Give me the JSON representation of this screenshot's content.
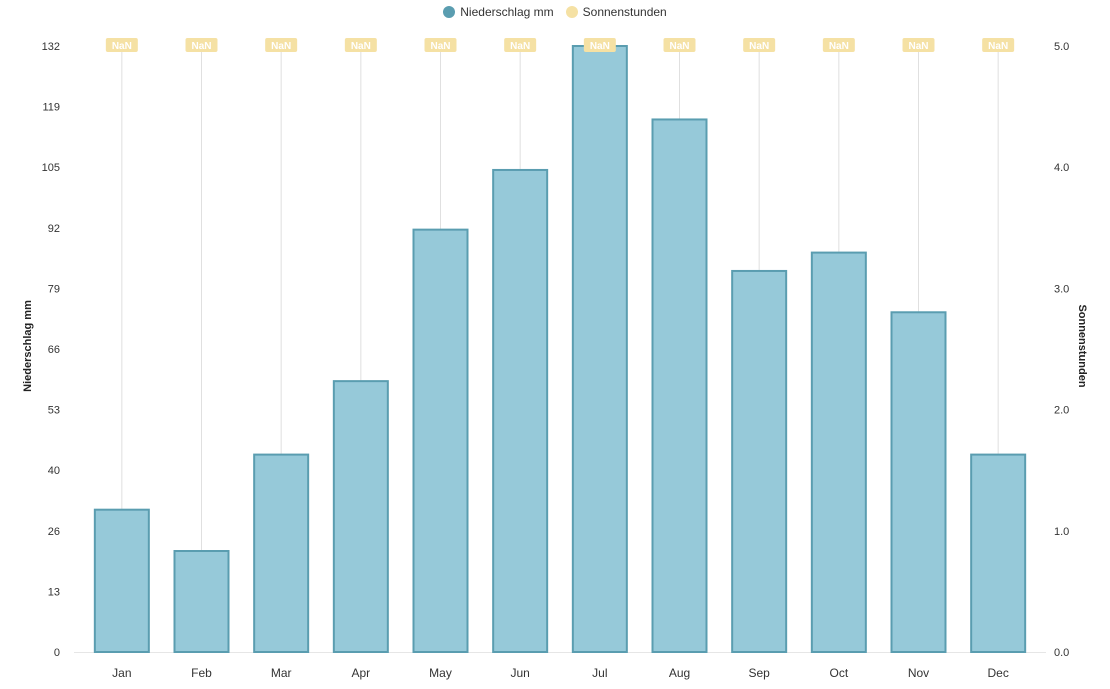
{
  "chart_data": {
    "type": "bar",
    "categories": [
      "Jan",
      "Feb",
      "Mar",
      "Apr",
      "May",
      "Jun",
      "Jul",
      "Aug",
      "Sep",
      "Oct",
      "Nov",
      "Dec"
    ],
    "series": [
      {
        "name": "Niederschlag mm",
        "axis": "left",
        "type": "bar",
        "values": [
          31,
          22,
          43,
          59,
          92,
          105,
          132,
          116,
          83,
          87,
          74,
          43
        ],
        "fill": "#96c9d9",
        "stroke": "#5a9db0"
      },
      {
        "name": "Sonnenstunden",
        "axis": "right",
        "type": "point",
        "values": [
          null,
          null,
          null,
          null,
          null,
          null,
          null,
          null,
          null,
          null,
          null,
          null
        ],
        "point_labels": [
          "NaN",
          "NaN",
          "NaN",
          "NaN",
          "NaN",
          "NaN",
          "NaN",
          "NaN",
          "NaN",
          "NaN",
          "NaN",
          "NaN"
        ],
        "color": "#f5e1a4"
      }
    ],
    "y_left": {
      "label": "Niederschlag mm",
      "ticks": [
        "0",
        "13",
        "26",
        "40",
        "53",
        "66",
        "79",
        "92",
        "105",
        "119",
        "132"
      ],
      "ylim": [
        0,
        132
      ]
    },
    "y_right": {
      "label": "Sonnenstunden",
      "ticks": [
        "0.0",
        "1.0",
        "2.0",
        "3.0",
        "4.0",
        "5.0"
      ],
      "ylim": [
        0,
        5
      ]
    },
    "legend": {
      "position": "top-center",
      "items": [
        {
          "label": "Niederschlag mm",
          "color": "#5a9db0"
        },
        {
          "label": "Sonnenstunden",
          "color": "#f5e1a4"
        }
      ]
    },
    "grid": "vertical"
  }
}
